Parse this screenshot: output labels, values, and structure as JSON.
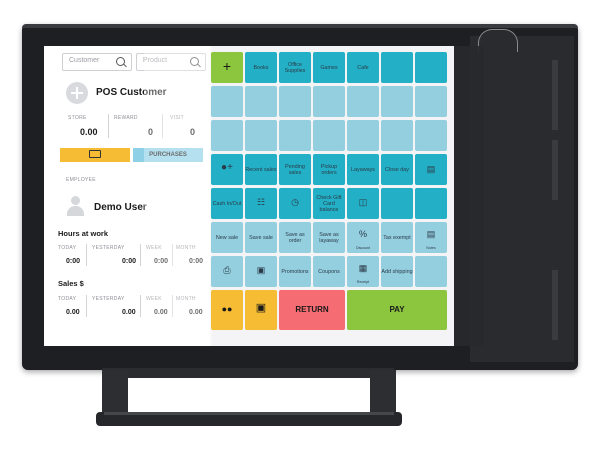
{
  "search": {
    "customer_placeholder": "Customer",
    "product_placeholder": "Product"
  },
  "customer": {
    "name": "POS Customer",
    "stat_labels": [
      "STORE",
      "REWARD",
      "VISIT"
    ],
    "stat_values": [
      "0.00",
      "0",
      "0"
    ],
    "purchases_label": "PURCHASES"
  },
  "employee": {
    "section_label": "EMPLOYEE",
    "name": "Demo User",
    "hours_title": "Hours at work",
    "sales_title": "Sales $",
    "period_labels": [
      "TODAY",
      "YESTERDAY",
      "WEEK",
      "MONTH"
    ],
    "hours_values": [
      "0:00",
      "0:00",
      "0:00",
      "0:00"
    ],
    "sales_values": [
      "0.00",
      "0.00",
      "0.00",
      "0.00"
    ]
  },
  "tiles": {
    "row1": [
      "Books",
      "Office Supplies",
      "Games",
      "Cafe"
    ],
    "recent_sales": "Recent sales",
    "pending_sales": "Pending sales",
    "pickup_orders": "Pickup orders",
    "layaways": "Layaways",
    "close_day": "Close day",
    "cash_in_out": "Cash In/Out",
    "check_gift_card": "Check Gift Card balance",
    "new_sale": "New sale",
    "save_sale": "Save sale",
    "save_as_order": "Save as order",
    "save_as_layaway": "Save as layaway",
    "discount": "Discount",
    "tax_exempt": "Tax exempt",
    "notes": "Notes",
    "promotions": "Promotions",
    "coupons": "Coupons",
    "receipt": "Receipt",
    "add_shipping": "Add shipping",
    "return": "RETURN",
    "pay": "PAY"
  },
  "colors": {
    "accent_green": "#8cc63f",
    "accent_yellow": "#f6bd34",
    "accent_red": "#f56c72",
    "tile_teal": "#23b0c6",
    "tile_light": "#94cfe0",
    "purchases_blue": "#8ed0e6"
  }
}
